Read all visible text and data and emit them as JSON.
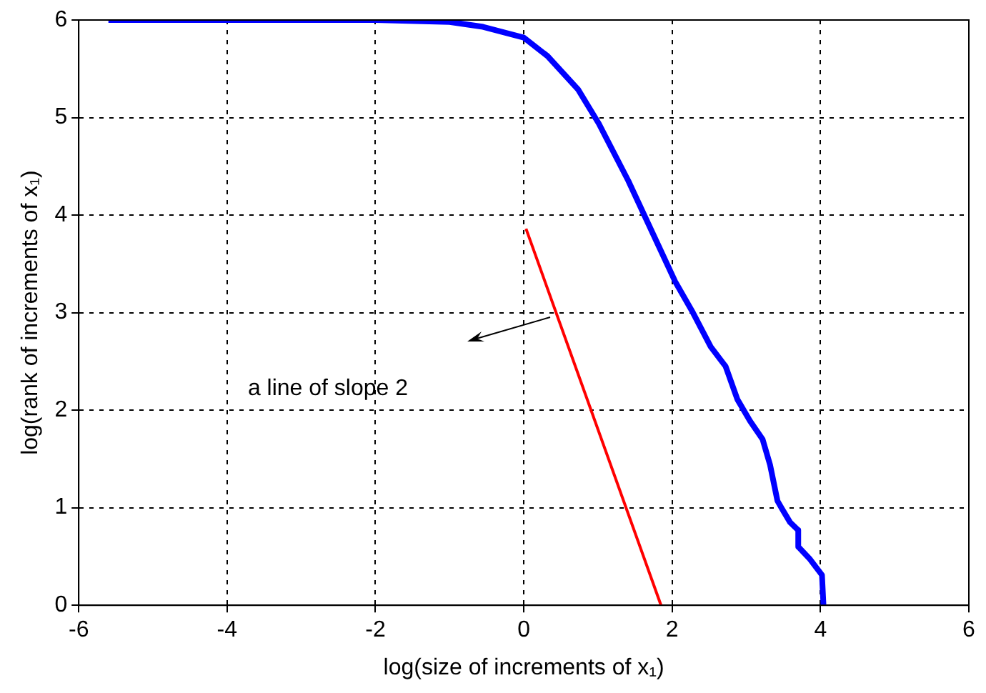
{
  "chart_data": {
    "type": "line",
    "xlabel": "log(size of increments of x₁)",
    "ylabel": "log(rank of increments of x₁)",
    "xlim": [
      -6,
      6
    ],
    "xticks": [
      -6,
      -4,
      -2,
      0,
      2,
      4,
      6
    ],
    "ylim": [
      0,
      6
    ],
    "yticks": [
      0,
      1,
      2,
      3,
      4,
      5,
      6
    ],
    "grid": true,
    "legend": false,
    "marker": "none",
    "line_style": "solid",
    "series": [
      {
        "color": "#0000ff",
        "x": [
          -5.6,
          -2,
          -1,
          -0.55,
          0,
          0.32,
          0.73,
          1.01,
          1.41,
          1.82,
          2.04,
          2.28,
          2.52,
          2.72,
          2.88,
          3.05,
          3.22,
          3.32,
          3.42,
          3.48,
          3.59,
          3.7,
          3.7,
          3.85,
          4.02,
          4.04
        ],
        "values": [
          6,
          6,
          5.98,
          5.93,
          5.82,
          5.63,
          5.29,
          4.94,
          4.35,
          3.68,
          3.32,
          3,
          2.65,
          2.45,
          2.11,
          1.89,
          1.7,
          1.44,
          1.07,
          0.99,
          0.85,
          0.77,
          0.6,
          0.48,
          0.31,
          0
        ]
      },
      {
        "color": "#ff0000",
        "x": [
          0.03,
          1.85
        ],
        "values": [
          3.86,
          0
        ]
      }
    ],
    "annotations": [
      "a line of slope 2"
    ]
  }
}
